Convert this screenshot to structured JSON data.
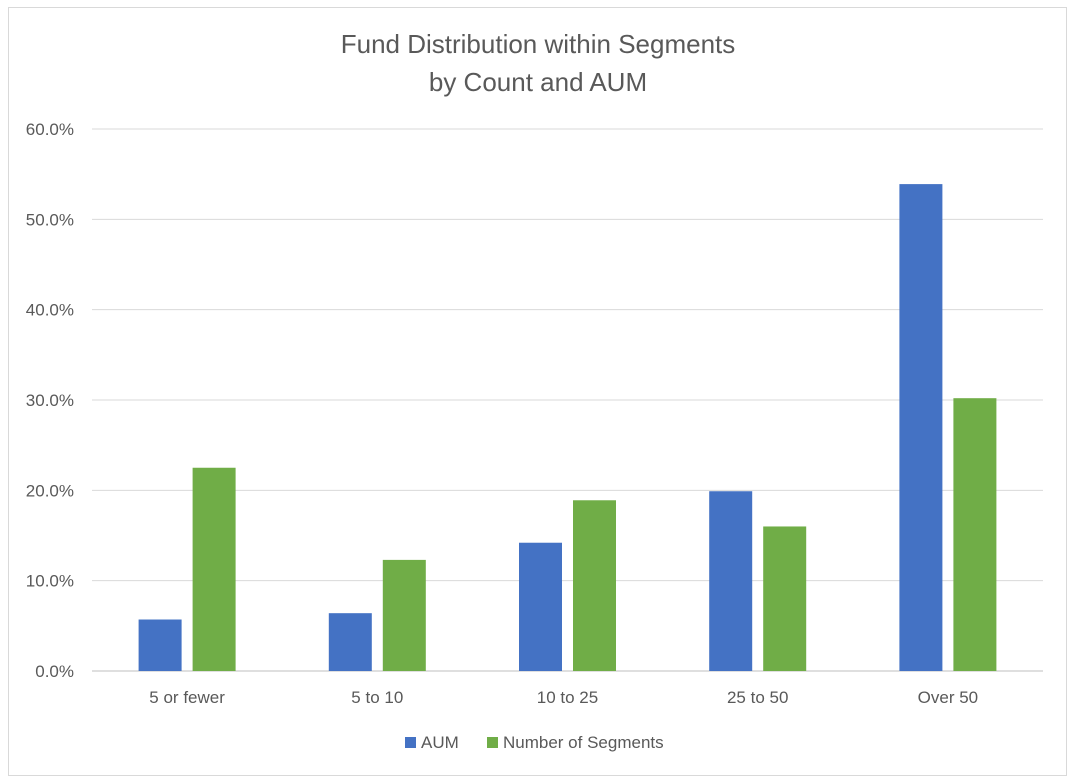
{
  "chart_data": {
    "type": "bar",
    "title_lines": [
      "Fund Distribution within Segments",
      "by Count and AUM"
    ],
    "categories": [
      "5 or fewer",
      "5 to 10",
      "10 to 25",
      "25 to 50",
      "Over 50"
    ],
    "series": [
      {
        "name": "AUM",
        "color": "#4472C4",
        "values": [
          5.7,
          6.4,
          14.2,
          19.9,
          53.9
        ]
      },
      {
        "name": "Number of Segments",
        "color": "#70AD47",
        "values": [
          22.5,
          12.3,
          18.9,
          16.0,
          30.2
        ]
      }
    ],
    "y_ticks": [
      "0.0%",
      "10.0%",
      "20.0%",
      "30.0%",
      "40.0%",
      "50.0%",
      "60.0%"
    ],
    "ylim": [
      0,
      60
    ],
    "grid": true,
    "legend_position": "bottom"
  }
}
